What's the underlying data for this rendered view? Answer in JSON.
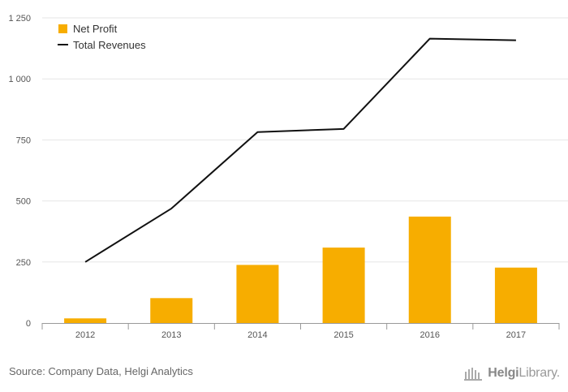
{
  "chart_data": {
    "type": "bar",
    "categories": [
      "2012",
      "2013",
      "2014",
      "2015",
      "2016",
      "2017"
    ],
    "series": [
      {
        "name": "Net Profit",
        "kind": "bar",
        "color": "#f7ad00",
        "values": [
          19,
          102,
          238,
          309,
          436,
          227
        ]
      },
      {
        "name": "Total Revenues",
        "kind": "line",
        "color": "#111111",
        "values": [
          250,
          469,
          782,
          795,
          1165,
          1158
        ]
      }
    ],
    "ylim": [
      0,
      1250
    ],
    "yticks": [
      0,
      250,
      500,
      750,
      1000,
      1250
    ],
    "ytick_labels": [
      "0",
      "250",
      "500",
      "750",
      "1 000",
      "1 250"
    ],
    "grid": true,
    "legend_position": "top-left",
    "title": "",
    "xlabel": "",
    "ylabel": ""
  },
  "footer": {
    "source": "Source: Company Data, Helgi Analytics",
    "brand_prefix": "Helgi",
    "brand_suffix": "Library."
  }
}
